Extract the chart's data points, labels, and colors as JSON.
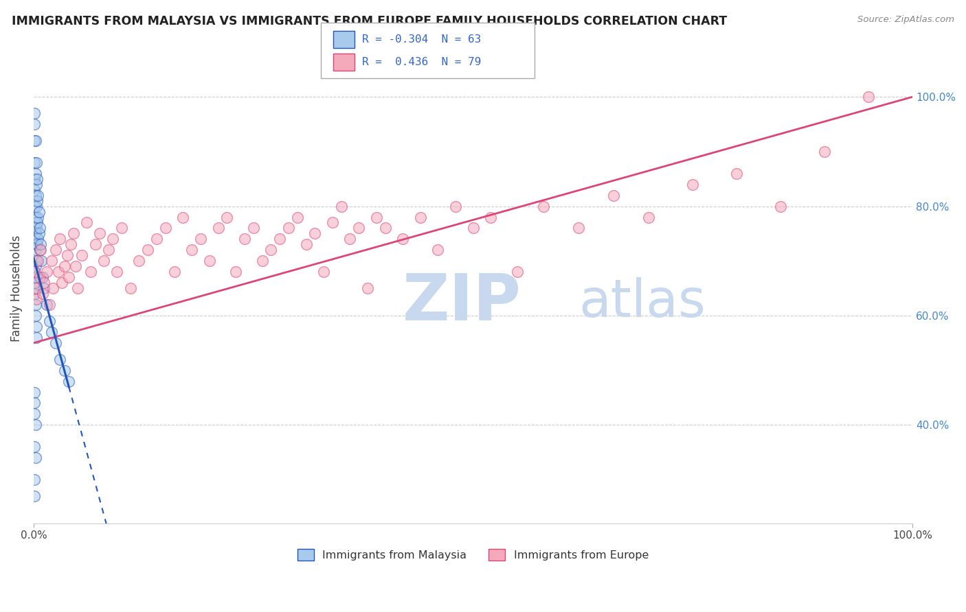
{
  "title": "IMMIGRANTS FROM MALAYSIA VS IMMIGRANTS FROM EUROPE FAMILY HOUSEHOLDS CORRELATION CHART",
  "source": "Source: ZipAtlas.com",
  "ylabel": "Family Households",
  "right_yticks": [
    "40.0%",
    "60.0%",
    "80.0%",
    "100.0%"
  ],
  "right_ytick_vals": [
    0.4,
    0.6,
    0.8,
    1.0
  ],
  "legend_blue_label": "Immigrants from Malaysia",
  "legend_pink_label": "Immigrants from Europe",
  "R_blue": -0.304,
  "N_blue": 63,
  "R_pink": 0.436,
  "N_pink": 79,
  "color_blue": "#A8CAED",
  "color_pink": "#F4AABB",
  "line_blue": "#2255BB",
  "line_pink": "#DD4477",
  "watermark_zip": "ZIP",
  "watermark_atlas": "atlas",
  "xlim": [
    0.0,
    1.0
  ],
  "ylim": [
    0.22,
    1.08
  ],
  "grid_yticks": [
    0.4,
    0.6,
    0.8,
    1.0
  ],
  "blue_x": [
    0.001,
    0.001,
    0.001,
    0.001,
    0.001,
    0.001,
    0.001,
    0.001,
    0.001,
    0.001,
    0.002,
    0.002,
    0.002,
    0.002,
    0.002,
    0.002,
    0.002,
    0.002,
    0.002,
    0.003,
    0.003,
    0.003,
    0.003,
    0.003,
    0.003,
    0.003,
    0.004,
    0.004,
    0.004,
    0.004,
    0.005,
    0.005,
    0.005,
    0.006,
    0.006,
    0.007,
    0.007,
    0.008,
    0.009,
    0.01,
    0.012,
    0.015,
    0.018,
    0.02,
    0.025,
    0.03,
    0.035,
    0.04,
    0.001,
    0.001,
    0.001,
    0.002,
    0.002,
    0.003,
    0.003,
    0.001,
    0.001,
    0.001,
    0.002,
    0.001,
    0.002,
    0.001,
    0.001
  ],
  "blue_y": [
    0.97,
    0.95,
    0.92,
    0.88,
    0.85,
    0.83,
    0.8,
    0.78,
    0.76,
    0.74,
    0.92,
    0.86,
    0.82,
    0.78,
    0.75,
    0.72,
    0.69,
    0.67,
    0.65,
    0.88,
    0.84,
    0.8,
    0.76,
    0.73,
    0.7,
    0.67,
    0.85,
    0.81,
    0.77,
    0.73,
    0.82,
    0.78,
    0.74,
    0.79,
    0.75,
    0.76,
    0.72,
    0.73,
    0.7,
    0.67,
    0.65,
    0.62,
    0.59,
    0.57,
    0.55,
    0.52,
    0.5,
    0.48,
    0.68,
    0.66,
    0.64,
    0.62,
    0.6,
    0.58,
    0.56,
    0.46,
    0.44,
    0.42,
    0.4,
    0.36,
    0.34,
    0.3,
    0.27
  ],
  "pink_x": [
    0.001,
    0.002,
    0.003,
    0.005,
    0.007,
    0.008,
    0.01,
    0.012,
    0.015,
    0.018,
    0.02,
    0.022,
    0.025,
    0.028,
    0.03,
    0.032,
    0.035,
    0.038,
    0.04,
    0.042,
    0.045,
    0.048,
    0.05,
    0.055,
    0.06,
    0.065,
    0.07,
    0.075,
    0.08,
    0.085,
    0.09,
    0.095,
    0.1,
    0.11,
    0.12,
    0.13,
    0.14,
    0.15,
    0.16,
    0.17,
    0.18,
    0.19,
    0.2,
    0.21,
    0.22,
    0.23,
    0.24,
    0.25,
    0.26,
    0.27,
    0.28,
    0.29,
    0.3,
    0.31,
    0.32,
    0.33,
    0.34,
    0.35,
    0.36,
    0.37,
    0.38,
    0.39,
    0.4,
    0.42,
    0.44,
    0.46,
    0.48,
    0.5,
    0.52,
    0.55,
    0.58,
    0.62,
    0.66,
    0.7,
    0.75,
    0.8,
    0.85,
    0.9,
    0.95
  ],
  "pink_y": [
    0.68,
    0.65,
    0.63,
    0.7,
    0.67,
    0.72,
    0.64,
    0.66,
    0.68,
    0.62,
    0.7,
    0.65,
    0.72,
    0.68,
    0.74,
    0.66,
    0.69,
    0.71,
    0.67,
    0.73,
    0.75,
    0.69,
    0.65,
    0.71,
    0.77,
    0.68,
    0.73,
    0.75,
    0.7,
    0.72,
    0.74,
    0.68,
    0.76,
    0.65,
    0.7,
    0.72,
    0.74,
    0.76,
    0.68,
    0.78,
    0.72,
    0.74,
    0.7,
    0.76,
    0.78,
    0.68,
    0.74,
    0.76,
    0.7,
    0.72,
    0.74,
    0.76,
    0.78,
    0.73,
    0.75,
    0.68,
    0.77,
    0.8,
    0.74,
    0.76,
    0.65,
    0.78,
    0.76,
    0.74,
    0.78,
    0.72,
    0.8,
    0.76,
    0.78,
    0.68,
    0.8,
    0.76,
    0.82,
    0.78,
    0.84,
    0.86,
    0.8,
    0.9,
    1.0
  ]
}
